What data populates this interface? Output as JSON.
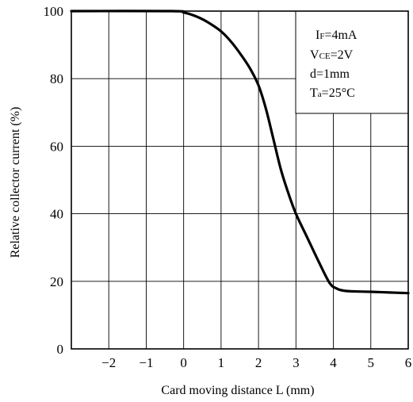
{
  "chart_data": {
    "type": "line",
    "title": "",
    "xlabel": "Card moving distance L (mm)",
    "ylabel": "Relative collector current (%)",
    "xlim": [
      -3,
      6
    ],
    "ylim": [
      0,
      100
    ],
    "x_ticks": [
      -2,
      -1,
      0,
      1,
      2,
      3,
      4,
      5,
      6
    ],
    "x_tick_labels": [
      "−2",
      "−1",
      "0",
      "1",
      "2",
      "3",
      "4",
      "5",
      "6"
    ],
    "y_ticks": [
      0,
      20,
      40,
      60,
      80,
      100
    ],
    "y_tick_labels": [
      "0",
      "20",
      "40",
      "60",
      "80",
      "100"
    ],
    "grid": true,
    "series": [
      {
        "x": [
          -3.0,
          -0.3,
          0.0,
          0.3,
          0.6,
          1.0,
          1.3,
          1.6,
          1.8,
          2.0,
          2.2,
          2.4,
          2.6,
          2.8,
          3.0,
          3.3,
          3.6,
          3.9,
          4.1,
          4.3,
          4.6,
          5.0,
          5.5,
          6.0
        ],
        "y": [
          100,
          100,
          99.6,
          98.6,
          97,
          94,
          90.5,
          86,
          82.5,
          78,
          71,
          62,
          53,
          46,
          40,
          33,
          26,
          19.5,
          17.8,
          17.2,
          17.0,
          16.9,
          16.7,
          16.5
        ]
      }
    ],
    "conditions": {
      "if": {
        "main": "I",
        "sub": "F",
        "rest": "=4mA"
      },
      "vce": {
        "main": "V",
        "sub": "CE",
        "rest": "=2V"
      },
      "d": {
        "text": "d=1mm"
      },
      "ta": {
        "main": "T",
        "sub": "a",
        "rest": "=25°C"
      }
    }
  }
}
